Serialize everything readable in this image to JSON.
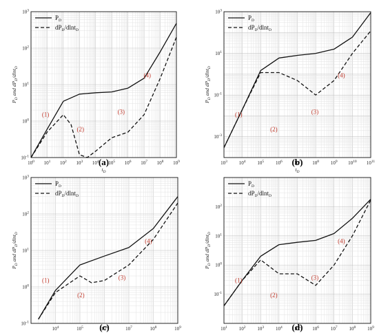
{
  "chart_data": [
    {
      "type": "line",
      "panel": "(a)",
      "caption": "(a)",
      "xlabel": "tD",
      "ylabel": "PD and dPD/dlntD",
      "log_x": true,
      "log_y": true,
      "grid": true,
      "legend": "top-left",
      "xlim": [
        1,
        1000000000.0
      ],
      "ylim": [
        0.1,
        1000
      ],
      "x_ticks": [
        "10^0",
        "10^1",
        "10^2",
        "10^3",
        "10^4",
        "10^5",
        "10^6",
        "10^7",
        "10^8",
        "10^9"
      ],
      "y_ticks": [
        "10^-1",
        "10^0",
        "10^1",
        "10^2",
        "10^3"
      ],
      "series": [
        {
          "name": "PD",
          "style": "solid",
          "x": [
            1,
            10,
            100,
            1000,
            10000,
            100000,
            1000000,
            10000000,
            100000000,
            1000000000
          ],
          "y": [
            0.06,
            0.6,
            3.5,
            5.5,
            6,
            6.3,
            8,
            15,
            80,
            480
          ]
        },
        {
          "name": "dPD/dlntD",
          "style": "dashed",
          "x": [
            1,
            10,
            100,
            300,
            1000,
            3000,
            10000,
            100000,
            1000000,
            10000000,
            100000000,
            1000000000
          ],
          "y": [
            0.06,
            0.5,
            1.5,
            0.8,
            0.12,
            0.08,
            0.15,
            0.35,
            0.5,
            1.5,
            15,
            200
          ]
        }
      ],
      "regions": [
        "(1)",
        "(2)",
        "(3)",
        "(4)"
      ]
    },
    {
      "type": "line",
      "panel": "(b)",
      "caption": "(b)",
      "xlabel": "tD",
      "ylabel": "PD and dPD/dlntD",
      "log_x": true,
      "log_y": true,
      "grid": true,
      "legend": "top-left",
      "xlim": [
        1000,
        100000000000.0
      ],
      "ylim": [
        0.0001,
        1000
      ],
      "x_ticks": [
        "10^3",
        "10^4",
        "10^5",
        "10^6",
        "10^7",
        "10^8",
        "10^9",
        "10^10",
        "10^11"
      ],
      "y_ticks": [
        "10^-3",
        "10^-1",
        "10^1",
        "10^3"
      ],
      "series": [
        {
          "name": "PD",
          "style": "solid",
          "x": [
            1000,
            10000,
            100000,
            1000000,
            10000000,
            100000000,
            1000000000,
            10000000000,
            100000000000
          ],
          "y": [
            0.0003,
            0.02,
            1.5,
            6,
            8,
            10,
            16,
            60,
            900
          ]
        },
        {
          "name": "dPD/dlntD",
          "style": "dashed",
          "x": [
            1000,
            10000,
            100000,
            1000000,
            10000000,
            100000000,
            1000000000,
            10000000000,
            100000000000
          ],
          "y": [
            0.0003,
            0.02,
            1.2,
            1.2,
            0.5,
            0.1,
            0.5,
            10,
            120
          ]
        }
      ],
      "regions": [
        "(1)",
        "(2)",
        "(3)",
        "(4)"
      ]
    },
    {
      "type": "line",
      "panel": "(c)",
      "caption": "(c)",
      "xlabel": "tD",
      "ylabel": "PD and dPD/dlntD",
      "log_x": true,
      "log_y": true,
      "grid": true,
      "legend": "top-left",
      "xlim": [
        1000,
        1000000000.0
      ],
      "ylim": [
        0.1,
        1000
      ],
      "x_ticks": [
        "10^4",
        "10^5",
        "10^6",
        "10^7",
        "10^8",
        "10^9"
      ],
      "y_ticks": [
        "10^-1",
        "10^0",
        "10^1",
        "10^2",
        "10^3"
      ],
      "series": [
        {
          "name": "PD",
          "style": "solid",
          "x": [
            2000,
            10000,
            100000,
            1000000,
            10000000,
            100000000,
            1000000000
          ],
          "y": [
            0.13,
            0.8,
            4,
            7,
            12,
            40,
            300
          ]
        },
        {
          "name": "dPD/dlntD",
          "style": "dashed",
          "x": [
            2000,
            10000,
            100000,
            300000,
            1000000,
            10000000,
            100000000,
            1000000000
          ],
          "y": [
            0.13,
            0.7,
            2,
            1.3,
            1.5,
            4,
            20,
            200
          ]
        }
      ],
      "regions": [
        "(1)",
        "(2)",
        "(3)",
        "(4)"
      ]
    },
    {
      "type": "line",
      "panel": "(d)",
      "caption": "(d)",
      "xlabel": "tD",
      "ylabel": "PD and dPD/dlntD",
      "log_x": true,
      "log_y": true,
      "grid": true,
      "legend": "top-left",
      "xlim": [
        10,
        1000000000.0
      ],
      "ylim": [
        0.01,
        1000
      ],
      "x_ticks": [
        "10^1",
        "10^2",
        "10^3",
        "10^4",
        "10^5",
        "10^6",
        "10^7",
        "10^8",
        "10^9"
      ],
      "y_ticks": [
        "10^-1",
        "10^0",
        "10^1",
        "10^2"
      ],
      "series": [
        {
          "name": "PD",
          "style": "solid",
          "x": [
            10,
            100,
            1000,
            10000,
            100000,
            1000000,
            10000000,
            100000000,
            1000000000
          ],
          "y": [
            0.04,
            0.3,
            2,
            5,
            6,
            7,
            12,
            40,
            180
          ]
        },
        {
          "name": "dPD/dlntD",
          "style": "dashed",
          "x": [
            10,
            100,
            1000,
            10000,
            100000,
            1000000,
            10000000,
            100000000,
            1000000000
          ],
          "y": [
            0.04,
            0.3,
            1.5,
            0.5,
            0.5,
            0.2,
            1,
            10,
            170
          ]
        }
      ],
      "regions": [
        "(1)",
        "(2)",
        "(3)",
        "(4)"
      ]
    }
  ]
}
